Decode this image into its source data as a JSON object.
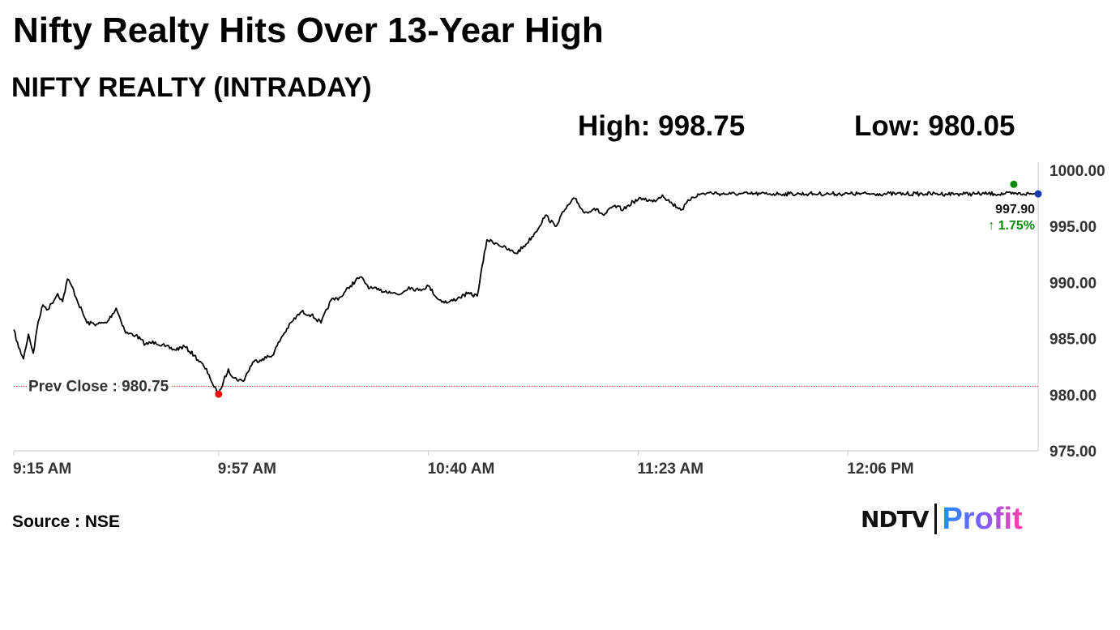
{
  "header": {
    "headline": "Nifty Realty Hits Over 13-Year High",
    "subtitle": "NIFTY REALTY (INTRADAY)",
    "high_label": "High: 998.75",
    "low_label": "Low: 980.05"
  },
  "chart_data": {
    "type": "line",
    "title": "NIFTY REALTY (INTRADAY)",
    "xlabel": "",
    "ylabel": "",
    "x_ticks": [
      "9:15 AM",
      "9:57 AM",
      "10:40 AM",
      "11:23 AM",
      "12:06 PM"
    ],
    "x_tick_times": [
      "09:15",
      "09:57",
      "10:40",
      "11:23",
      "12:06"
    ],
    "x_range": [
      "09:15",
      "12:45"
    ],
    "y_ticks": [
      "975.00",
      "980.00",
      "985.00",
      "990.00",
      "995.00",
      "1000.00"
    ],
    "ylim": [
      975,
      1000
    ],
    "grid": false,
    "series": [
      {
        "x": [
          "09:15",
          "09:16",
          "09:17",
          "09:18",
          "09:19",
          "09:20",
          "09:21",
          "09:22",
          "09:24",
          "09:25",
          "09:26",
          "09:27",
          "09:28",
          "09:30",
          "09:32",
          "09:34",
          "09:36",
          "09:38",
          "09:40",
          "09:42",
          "09:44",
          "09:46",
          "09:48",
          "09:50",
          "09:52",
          "09:54",
          "09:55",
          "09:56",
          "09:57",
          "09:58",
          "09:59",
          "10:00",
          "10:02",
          "10:04",
          "10:06",
          "10:08",
          "10:10",
          "10:12",
          "10:14",
          "10:16",
          "10:18",
          "10:20",
          "10:22",
          "10:24",
          "10:26",
          "10:28",
          "10:30",
          "10:32",
          "10:34",
          "10:36",
          "10:38",
          "10:40",
          "10:42",
          "10:44",
          "10:46",
          "10:48",
          "10:50",
          "10:52",
          "10:54",
          "10:56",
          "10:58",
          "11:00",
          "11:02",
          "11:04",
          "11:06",
          "11:08",
          "11:10",
          "11:12",
          "11:14",
          "11:16",
          "11:18",
          "11:20",
          "11:22",
          "11:24",
          "11:26",
          "11:28",
          "11:30",
          "11:32",
          "11:34",
          "11:36",
          "11:38",
          "11:40",
          "11:42",
          "11:44",
          "11:46",
          "11:48",
          "11:50",
          "11:52",
          "11:54",
          "11:56",
          "11:58",
          "12:00",
          "12:02",
          "12:04",
          "12:06",
          "12:08",
          "12:10",
          "12:12",
          "12:14",
          "12:16",
          "12:18",
          "12:20",
          "12:22",
          "12:24",
          "12:26",
          "12:28",
          "12:30",
          "12:32",
          "12:34",
          "12:36",
          "12:38",
          "12:40",
          "12:42",
          "12:44",
          "12:45"
        ],
        "y": [
          985.8,
          984.2,
          983.2,
          985.4,
          983.7,
          986.5,
          988.0,
          987.6,
          989.0,
          988.3,
          990.3,
          989.6,
          988.4,
          986.4,
          986.3,
          986.4,
          987.7,
          985.5,
          985.3,
          984.5,
          984.7,
          984.3,
          984.0,
          984.3,
          983.5,
          982.5,
          981.8,
          980.7,
          980.0,
          981.2,
          982.3,
          981.5,
          981.2,
          982.9,
          983.2,
          983.5,
          985.2,
          986.5,
          987.4,
          987.1,
          986.4,
          988.4,
          988.7,
          989.7,
          990.5,
          989.5,
          989.3,
          989.2,
          988.9,
          989.6,
          989.3,
          989.7,
          988.5,
          988.2,
          988.6,
          989.0,
          988.8,
          993.8,
          993.5,
          993.0,
          992.6,
          993.4,
          994.5,
          996.0,
          995.0,
          996.5,
          997.5,
          996.2,
          996.6,
          996.0,
          996.8,
          996.5,
          997.2,
          997.5,
          997.2,
          997.8,
          997.0,
          996.5,
          997.6,
          997.9,
          998.0,
          997.9,
          997.9,
          997.9,
          997.9,
          997.9,
          997.9,
          997.9,
          997.9,
          997.9,
          997.9,
          997.9,
          997.9,
          997.9,
          997.9,
          997.9,
          997.9,
          997.9,
          997.9,
          997.9,
          997.9,
          997.9,
          997.9,
          997.9,
          997.9,
          997.9,
          997.9,
          997.9,
          997.9,
          997.9,
          997.9,
          997.9,
          997.9,
          997.9,
          997.9
        ]
      }
    ],
    "prev_close": {
      "label": "Prev Close : 980.75",
      "value": 980.75
    },
    "low_point": {
      "x": "09:57",
      "y": 980.05
    },
    "high_point": {
      "x": "12:40",
      "y": 998.75
    },
    "last_point": {
      "x": "12:45",
      "y": 997.9
    },
    "last_label": "997.90",
    "change_label": "↑ 1.75%",
    "colors": {
      "line": "#000000",
      "prev_close": "#e03030",
      "low_marker": "#ee1111",
      "high_marker": "#0a8a0a",
      "last_marker": "#1a3bb0",
      "change_text": "#0a8a0a",
      "axis": "#cccccc",
      "tick_text": "#333333"
    }
  },
  "footer": {
    "source": "Source : NSE",
    "brand_ndtv": "NDTV",
    "brand_profit": "Profit"
  }
}
